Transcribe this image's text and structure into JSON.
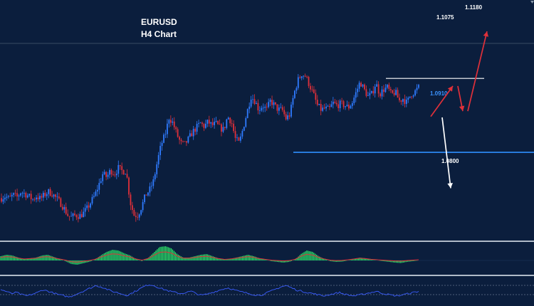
{
  "chart_data": {
    "type": "candlestick",
    "title": "EURUSD",
    "subtitle": "H4 Chart",
    "colors": {
      "background": "#0b1e3d",
      "bull_candle": "#2f7bff",
      "bear_candle": "#e0303a",
      "support_line": "#2f8fff",
      "resistance_line": "#ffffff",
      "macd_histogram": "#2ee66a",
      "macd_signal": "#e0303a",
      "rsi_line": "#3a5cff",
      "panel_separator": "#c9d2dc"
    },
    "close_path": [
      1.0808,
      1.0812,
      1.0806,
      1.0815,
      1.081,
      1.0822,
      1.0818,
      1.0812,
      1.0805,
      1.0812,
      1.0806,
      1.0815,
      1.0822,
      1.0818,
      1.0808,
      1.0799,
      1.0786,
      1.077,
      1.0765,
      1.077,
      1.0768,
      1.0774,
      1.0785,
      1.08,
      1.0815,
      1.0838,
      1.0862,
      1.0855,
      1.087,
      1.0862,
      1.0875,
      1.0868,
      1.0868,
      1.08,
      1.077,
      1.077,
      1.079,
      1.0815,
      1.0826,
      1.0846,
      1.089,
      1.0928,
      1.095,
      1.0988,
      1.0975,
      1.095,
      1.093,
      1.0928,
      1.094,
      1.0955,
      1.0965,
      1.0975,
      1.0968,
      1.0978,
      1.097,
      1.0974,
      1.0965,
      1.096,
      1.099,
      1.0978,
      1.094,
      1.093,
      1.0965,
      1.1,
      1.1035,
      1.1025,
      1.1005,
      1.1015,
      1.1005,
      1.1025,
      1.1015,
      1.1005,
      1.1005,
      1.0985,
      1.0995,
      1.104,
      1.107,
      1.1085,
      1.108,
      1.106,
      1.104,
      1.1015,
      1.1005,
      1.1008,
      1.1005,
      1.102,
      1.1015,
      1.1018,
      1.1015,
      1.101,
      1.1022,
      1.1045,
      1.1068,
      1.105,
      1.1035,
      1.104,
      1.1065,
      1.104,
      1.105,
      1.1055,
      1.1038,
      1.1045,
      1.1025,
      1.103,
      1.102,
      1.104,
      1.1045,
      1.1055
    ],
    "levels": [
      {
        "name": "support",
        "value": 1.091
      },
      {
        "name": "resistance",
        "value": 1.1075
      }
    ],
    "annotations": [
      {
        "text": "1.1180",
        "value": 1.118
      },
      {
        "text": "1.1075",
        "value": 1.1075
      },
      {
        "text": "1.0910",
        "value": 1.091
      },
      {
        "text": "1.0800",
        "value": 1.08
      }
    ],
    "scenario_bullish": [
      1.099,
      1.1058,
      1.1002,
      1.118
    ],
    "scenario_bearish": [
      1.0988,
      1.083
    ],
    "macd_histogram": [
      0.3,
      0.4,
      0.35,
      0.2,
      0.1,
      0.15,
      0.2,
      0.35,
      0.4,
      0.25,
      0.1,
      -0.05,
      -0.25,
      -0.3,
      -0.2,
      -0.1,
      0.05,
      0.35,
      0.6,
      0.75,
      0.7,
      0.5,
      0.35,
      0.1,
      -0.05,
      0.15,
      0.55,
      0.95,
      1.0,
      0.85,
      0.45,
      0.2,
      0.2,
      0.3,
      0.4,
      0.45,
      0.3,
      0.15,
      0.05,
      0.1,
      0.2,
      0.3,
      0.4,
      0.3,
      0.15,
      0.05,
      -0.05,
      -0.1,
      -0.15,
      -0.1,
      0.05,
      0.45,
      0.7,
      0.6,
      0.3,
      0.1,
      -0.05,
      -0.1,
      -0.08,
      0.0,
      0.1,
      0.2,
      0.15,
      0.05,
      0.0,
      -0.05,
      -0.1,
      -0.15,
      -0.18,
      -0.1,
      -0.05,
      0.0
    ],
    "rsi_values": [
      55,
      52,
      48,
      50,
      46,
      44,
      47,
      50,
      55,
      52,
      49,
      46,
      44,
      42,
      46,
      50,
      54,
      58,
      62,
      60,
      56,
      52,
      50,
      47,
      45,
      50,
      55,
      60,
      64,
      62,
      58,
      55,
      52,
      50,
      48,
      50,
      52,
      48,
      45,
      47,
      50,
      53,
      56,
      58,
      55,
      52,
      50,
      48,
      46,
      45,
      48,
      52,
      56,
      60,
      62,
      58,
      54,
      52,
      50,
      48,
      46,
      44,
      46,
      48,
      50,
      47,
      45,
      44,
      46,
      48,
      50,
      52,
      49,
      47,
      45,
      44,
      46,
      48,
      50,
      52
    ],
    "y_range": [
      1.071,
      1.125
    ],
    "grid": false,
    "legend": "none"
  }
}
